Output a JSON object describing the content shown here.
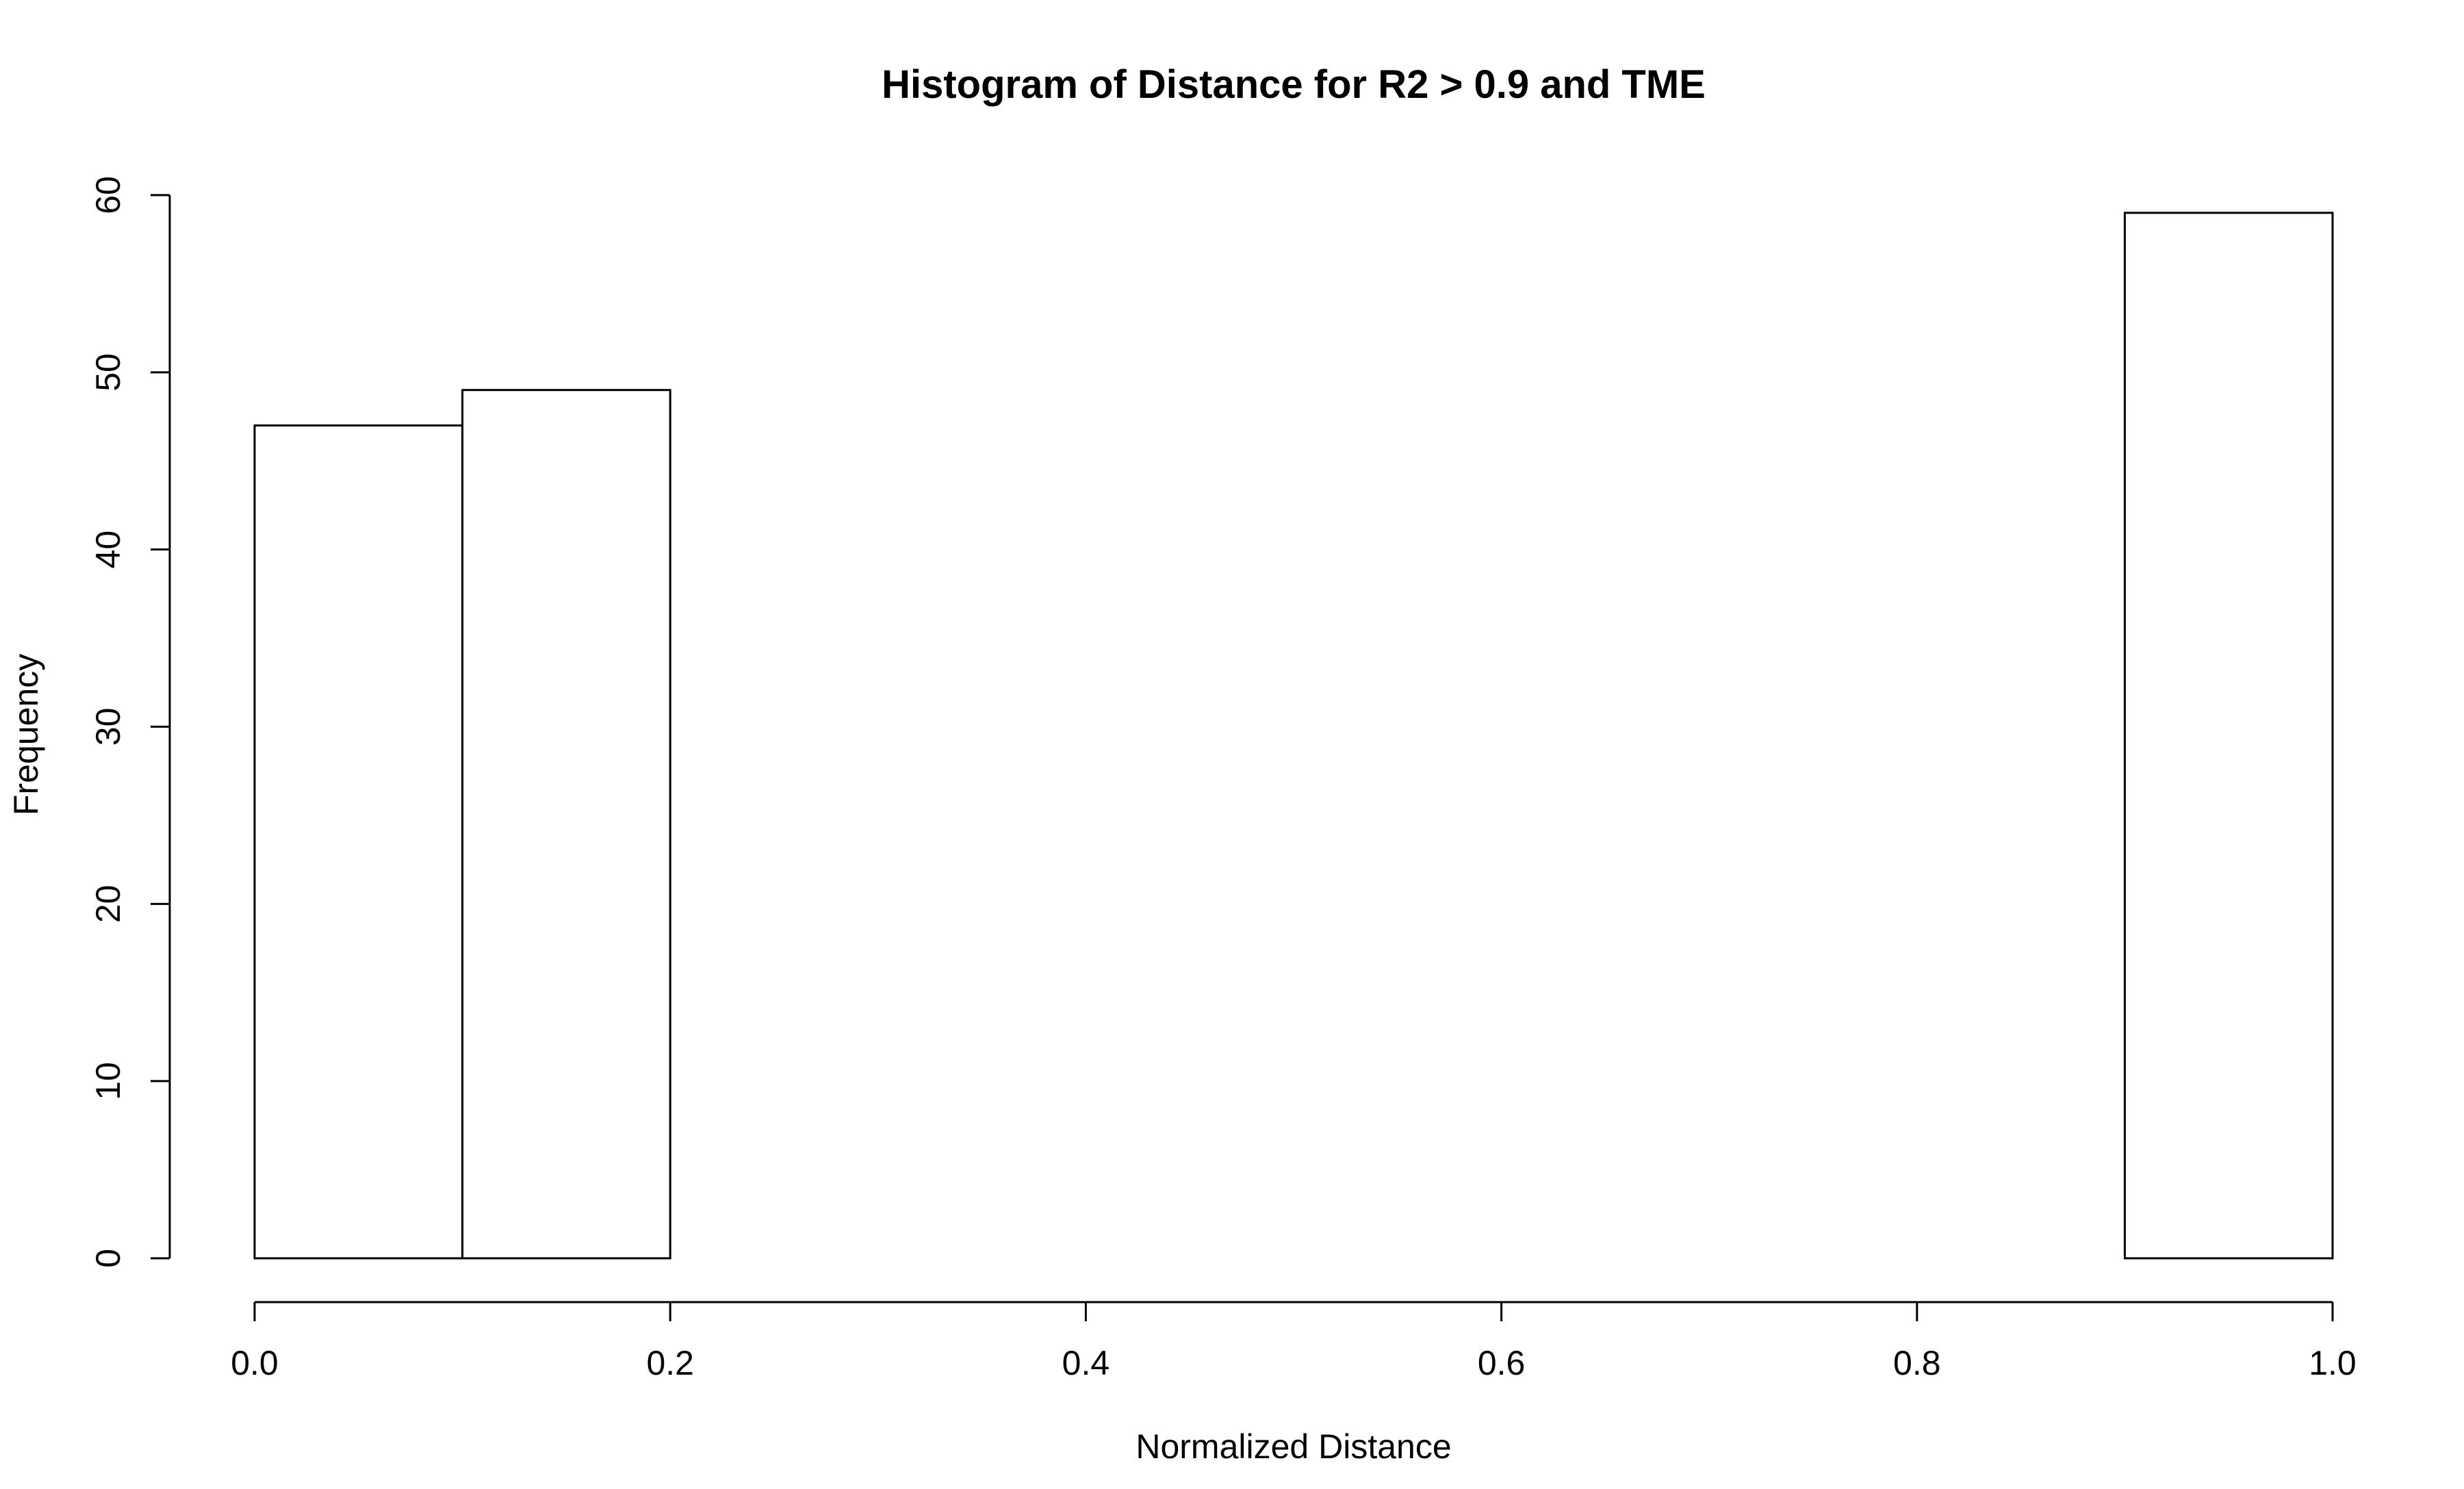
{
  "chart_data": {
    "type": "bar",
    "title": "Histogram of Distance for R2 >  0.9  and TME",
    "xlabel": "Normalized Distance",
    "ylabel": "Frequency",
    "bins": [
      {
        "from": 0.0,
        "to": 0.1,
        "count": 47
      },
      {
        "from": 0.1,
        "to": 0.2,
        "count": 49
      },
      {
        "from": 0.2,
        "to": 0.3,
        "count": 0
      },
      {
        "from": 0.3,
        "to": 0.4,
        "count": 0
      },
      {
        "from": 0.4,
        "to": 0.5,
        "count": 0
      },
      {
        "from": 0.5,
        "to": 0.6,
        "count": 0
      },
      {
        "from": 0.6,
        "to": 0.7,
        "count": 0
      },
      {
        "from": 0.7,
        "to": 0.8,
        "count": 0
      },
      {
        "from": 0.8,
        "to": 0.9,
        "count": 0
      },
      {
        "from": 0.9,
        "to": 1.0,
        "count": 59
      }
    ],
    "xlim": [
      0.0,
      1.0
    ],
    "ylim": [
      0,
      60
    ],
    "x_ticks": [
      "0.0",
      "0.2",
      "0.4",
      "0.6",
      "0.8",
      "1.0"
    ],
    "y_ticks": [
      "0",
      "10",
      "20",
      "30",
      "40",
      "50",
      "60"
    ],
    "grid": false,
    "bar_fill": "#ffffff",
    "bar_stroke": "#000000"
  }
}
